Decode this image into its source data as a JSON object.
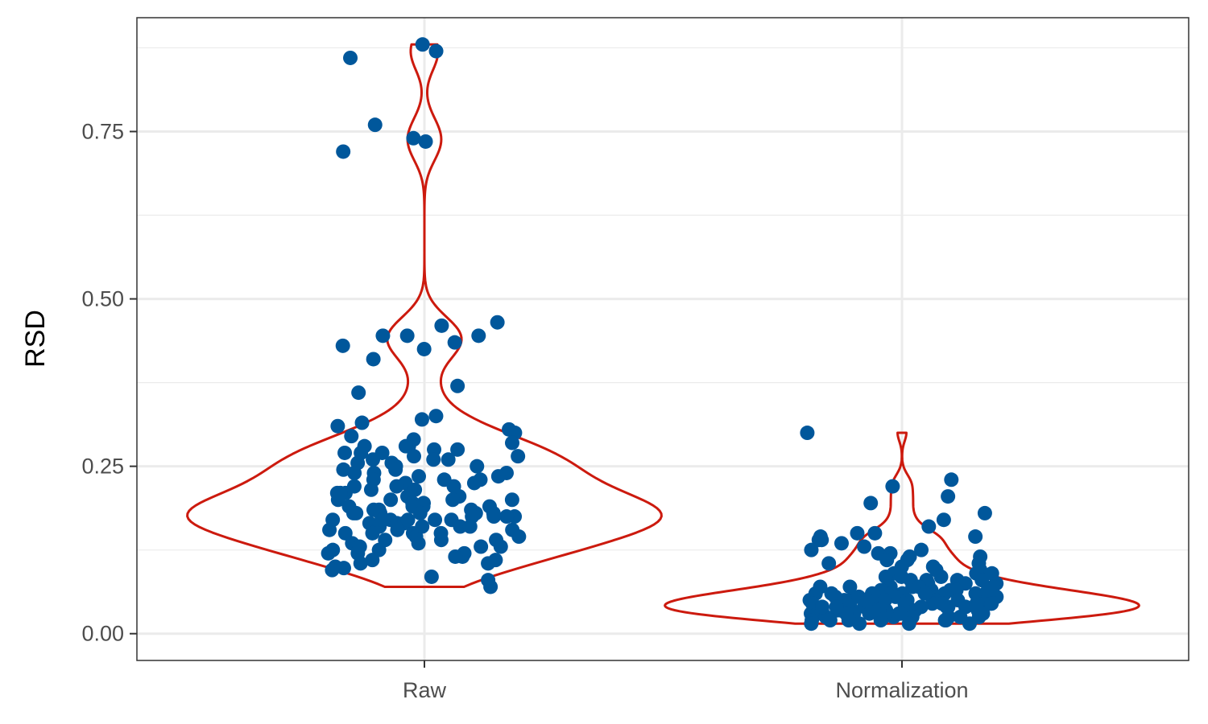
{
  "chart_data": {
    "type": "scatter",
    "title": "",
    "xlabel": "",
    "ylabel": "RSD",
    "categories": [
      "Raw",
      "Normalization"
    ],
    "ylim": [
      -0.04,
      0.92
    ],
    "yticks": [
      0.0,
      0.25,
      0.5,
      0.75
    ],
    "ytick_labels": [
      "0.00",
      "0.25",
      "0.50",
      "0.75"
    ],
    "grid": true,
    "legend": "none",
    "colors": {
      "points": "#00579b",
      "violin": "#cc1a0e",
      "grid": "#ebebeb",
      "panel_border": "#333333"
    },
    "series": [
      {
        "category": "Raw",
        "values": [
          0.88,
          0.87,
          0.86,
          0.76,
          0.74,
          0.735,
          0.72,
          0.465,
          0.46,
          0.445,
          0.445,
          0.445,
          0.435,
          0.43,
          0.425,
          0.41,
          0.37,
          0.36,
          0.325,
          0.32,
          0.315,
          0.31,
          0.305,
          0.3,
          0.295,
          0.29,
          0.285,
          0.28,
          0.28,
          0.275,
          0.275,
          0.27,
          0.27,
          0.265,
          0.265,
          0.26,
          0.26,
          0.255,
          0.255,
          0.25,
          0.25,
          0.245,
          0.245,
          0.24,
          0.24,
          0.235,
          0.235,
          0.23,
          0.23,
          0.225,
          0.225,
          0.22,
          0.22,
          0.215,
          0.215,
          0.21,
          0.21,
          0.205,
          0.205,
          0.2,
          0.2,
          0.2,
          0.195,
          0.195,
          0.195,
          0.19,
          0.19,
          0.19,
          0.185,
          0.185,
          0.185,
          0.18,
          0.18,
          0.18,
          0.18,
          0.175,
          0.175,
          0.175,
          0.175,
          0.17,
          0.17,
          0.17,
          0.17,
          0.165,
          0.165,
          0.165,
          0.16,
          0.16,
          0.16,
          0.155,
          0.155,
          0.155,
          0.15,
          0.15,
          0.15,
          0.145,
          0.145,
          0.14,
          0.14,
          0.135,
          0.135,
          0.13,
          0.13,
          0.125,
          0.125,
          0.12,
          0.12,
          0.115,
          0.115,
          0.11,
          0.11,
          0.105,
          0.105,
          0.1,
          0.098,
          0.095,
          0.085,
          0.08,
          0.07,
          0.18,
          0.19,
          0.2,
          0.17,
          0.16,
          0.21,
          0.22,
          0.15,
          0.14,
          0.23,
          0.24,
          0.13,
          0.12,
          0.26,
          0.27,
          0.28,
          0.19,
          0.18,
          0.17
        ]
      },
      {
        "category": "Normalization",
        "values": [
          0.3,
          0.23,
          0.22,
          0.205,
          0.195,
          0.18,
          0.17,
          0.16,
          0.15,
          0.15,
          0.145,
          0.145,
          0.14,
          0.14,
          0.135,
          0.13,
          0.125,
          0.125,
          0.12,
          0.12,
          0.115,
          0.115,
          0.11,
          0.11,
          0.105,
          0.105,
          0.1,
          0.1,
          0.095,
          0.095,
          0.09,
          0.09,
          0.09,
          0.085,
          0.085,
          0.085,
          0.08,
          0.08,
          0.08,
          0.075,
          0.075,
          0.075,
          0.07,
          0.07,
          0.07,
          0.07,
          0.065,
          0.065,
          0.065,
          0.065,
          0.06,
          0.06,
          0.06,
          0.06,
          0.06,
          0.055,
          0.055,
          0.055,
          0.055,
          0.055,
          0.05,
          0.05,
          0.05,
          0.05,
          0.05,
          0.05,
          0.045,
          0.045,
          0.045,
          0.045,
          0.045,
          0.045,
          0.04,
          0.04,
          0.04,
          0.04,
          0.04,
          0.04,
          0.04,
          0.035,
          0.035,
          0.035,
          0.035,
          0.035,
          0.035,
          0.035,
          0.03,
          0.03,
          0.03,
          0.03,
          0.03,
          0.03,
          0.03,
          0.025,
          0.025,
          0.025,
          0.025,
          0.025,
          0.025,
          0.02,
          0.02,
          0.02,
          0.02,
          0.02,
          0.015,
          0.015,
          0.015,
          0.015,
          0.06,
          0.05,
          0.04,
          0.03,
          0.07,
          0.08,
          0.045,
          0.055,
          0.035,
          0.065,
          0.025,
          0.05,
          0.04,
          0.03,
          0.06,
          0.02,
          0.07,
          0.045,
          0.055,
          0.035,
          0.05,
          0.04,
          0.03,
          0.06,
          0.05,
          0.045
        ]
      }
    ]
  }
}
